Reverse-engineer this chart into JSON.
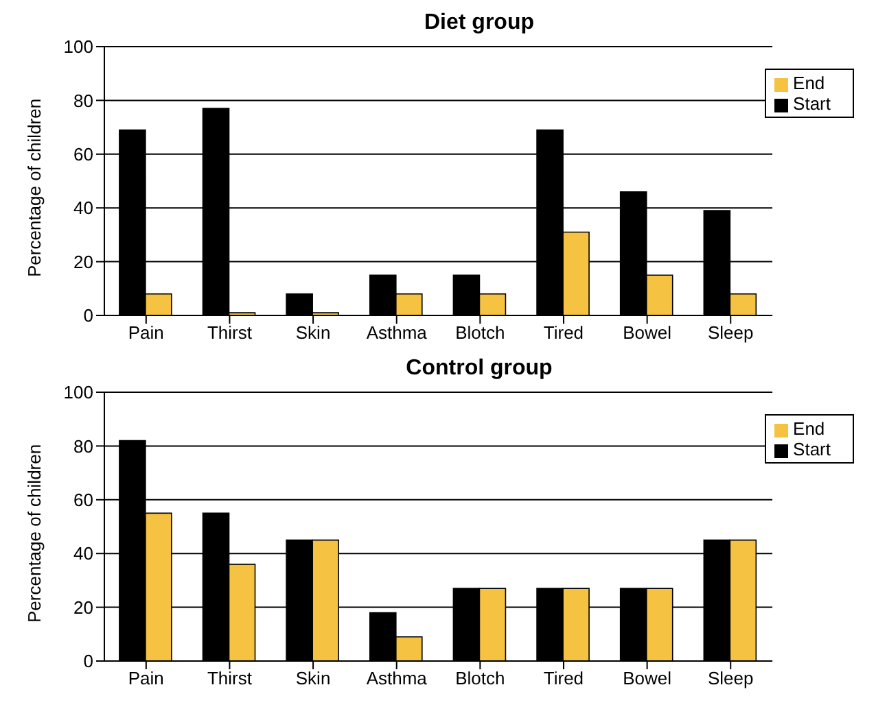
{
  "chart_data": [
    {
      "type": "bar",
      "title": "Diet group",
      "ylabel": "Percentage of children",
      "categories": [
        "Pain",
        "Thirst",
        "Skin",
        "Asthma",
        "Blotch",
        "Tired",
        "Bowel",
        "Sleep"
      ],
      "series": [
        {
          "name": "Start",
          "color": "#000000",
          "values": [
            69,
            77,
            8,
            15,
            15,
            69,
            46,
            39
          ]
        },
        {
          "name": "End",
          "color": "#f5c242",
          "values": [
            8,
            1,
            1,
            8,
            8,
            31,
            15,
            8
          ]
        }
      ],
      "ylim": [
        0,
        100
      ],
      "yticks": [
        0,
        20,
        40,
        60,
        80,
        100
      ],
      "grid": "y",
      "legend": "top right"
    },
    {
      "type": "bar",
      "title": "Control group",
      "ylabel": "Percentage of children",
      "categories": [
        "Pain",
        "Thirst",
        "Skin",
        "Asthma",
        "Blotch",
        "Tired",
        "Bowel",
        "Sleep"
      ],
      "series": [
        {
          "name": "Start",
          "color": "#000000",
          "values": [
            82,
            55,
            45,
            18,
            27,
            27,
            27,
            45
          ]
        },
        {
          "name": "End",
          "color": "#f5c242",
          "values": [
            55,
            36,
            45,
            9,
            27,
            27,
            27,
            45
          ]
        }
      ],
      "ylim": [
        0,
        100
      ],
      "yticks": [
        0,
        20,
        40,
        60,
        80,
        100
      ],
      "grid": "y",
      "legend": "top right"
    }
  ]
}
